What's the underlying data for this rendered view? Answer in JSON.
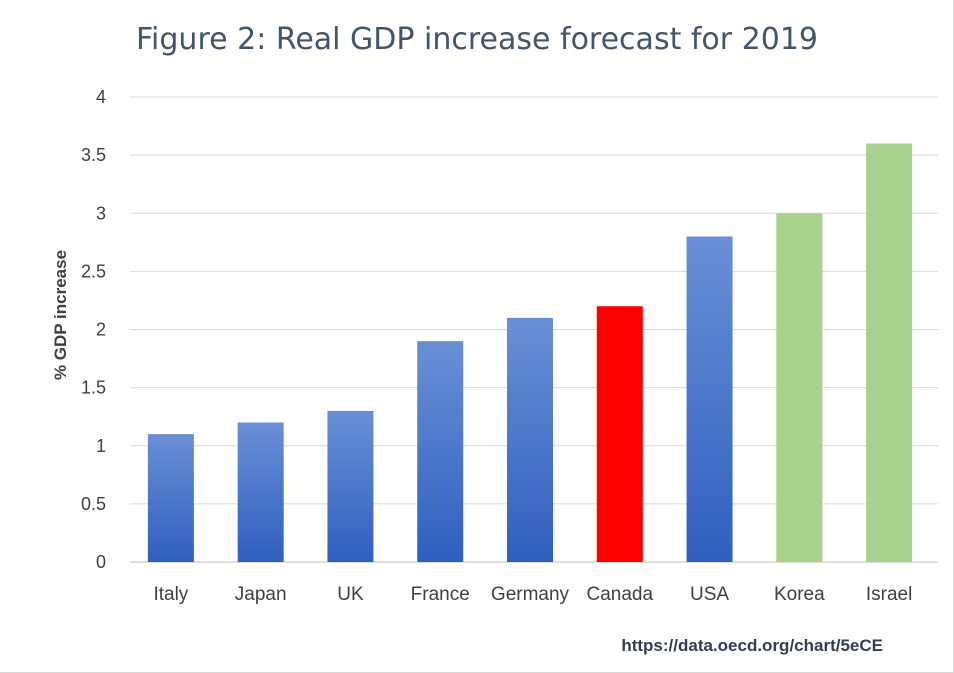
{
  "chart_data": {
    "type": "bar",
    "title": "Figure 2: Real GDP increase forecast for 2019",
    "xlabel": "",
    "ylabel": "% GDP increase",
    "categories": [
      "Italy",
      "Japan",
      "UK",
      "France",
      "Germany",
      "Canada",
      "USA",
      "Korea",
      "Israel"
    ],
    "values": [
      1.1,
      1.2,
      1.3,
      1.9,
      2.1,
      2.2,
      2.8,
      3.0,
      3.6
    ],
    "bar_colors": [
      "#4a74cc",
      "#4a74cc",
      "#4a74cc",
      "#4a74cc",
      "#4a74cc",
      "#ff0000",
      "#4a74cc",
      "#a9d18e",
      "#a9d18e"
    ],
    "ylim": [
      0,
      4
    ],
    "yticks": [
      0,
      0.5,
      1,
      1.5,
      2,
      2.5,
      3,
      3.5,
      4
    ],
    "ytick_labels": [
      "0",
      "0.5",
      "1",
      "1.5",
      "2",
      "2.5",
      "3",
      "3.5",
      "4"
    ],
    "grid": true,
    "legend": "none"
  },
  "source": "https://data.oecd.org/chart/5eCE"
}
